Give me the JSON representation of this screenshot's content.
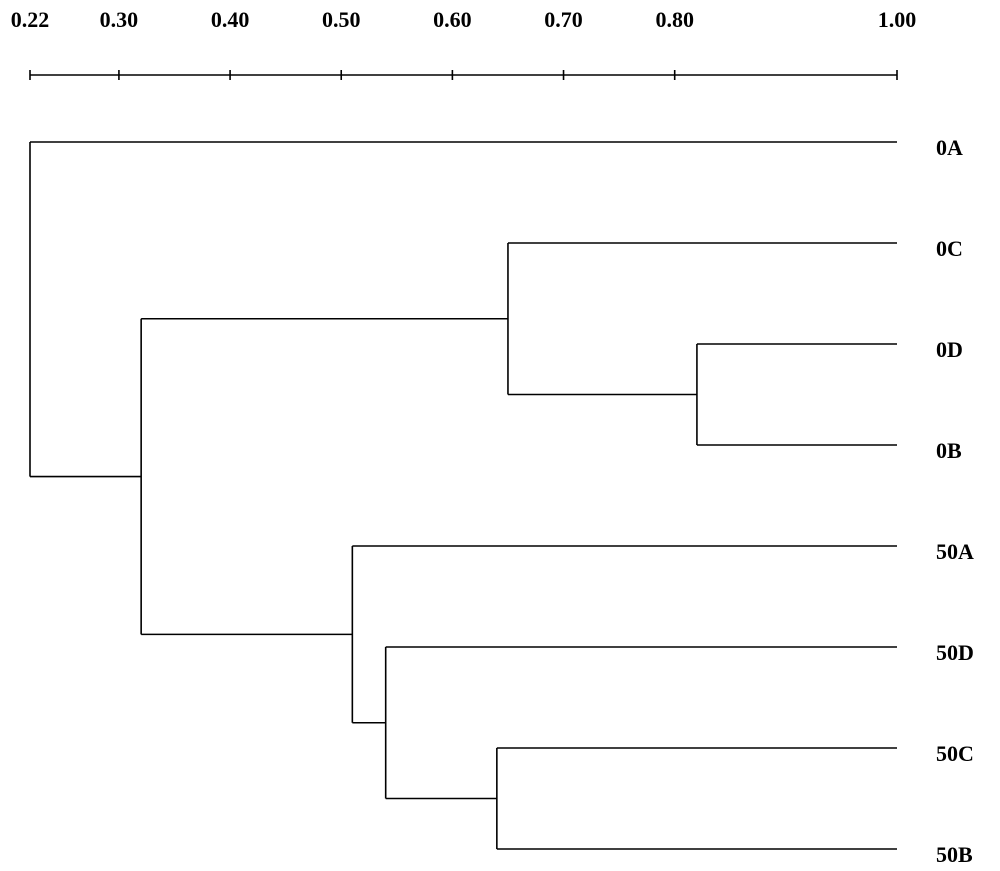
{
  "chart_data": {
    "type": "dendrogram",
    "xlim": [
      0.22,
      1.0
    ],
    "xticks": [
      0.22,
      {
        "value": 0.3,
        "label": "0.30"
      },
      {
        "value": 0.4,
        "label": "0.40"
      },
      {
        "value": 0.5,
        "label": "0.50"
      },
      {
        "value": 0.6,
        "label": "0.60"
      },
      {
        "value": 0.7,
        "label": "0.70"
      },
      {
        "value": 0.8,
        "label": "0.80"
      },
      {
        "value": 1.0,
        "label": "1.00"
      }
    ],
    "color": "#000000",
    "tree": {
      "height": 0.22,
      "children": [
        {
          "label": "0A"
        },
        {
          "height": 0.32,
          "children": [
            {
              "height": 0.65,
              "children": [
                {
                  "label": "0C"
                },
                {
                  "height": 0.82,
                  "children": [
                    {
                      "label": "0D"
                    },
                    {
                      "label": "0B"
                    }
                  ]
                }
              ]
            },
            {
              "height": 0.51,
              "children": [
                {
                  "label": "50A"
                },
                {
                  "height": 0.54,
                  "children": [
                    {
                      "label": "50D"
                    },
                    {
                      "height": 0.64,
                      "children": [
                        {
                          "label": "50C"
                        },
                        {
                          "label": "50B"
                        }
                      ]
                    }
                  ]
                }
              ]
            }
          ]
        }
      ]
    }
  }
}
